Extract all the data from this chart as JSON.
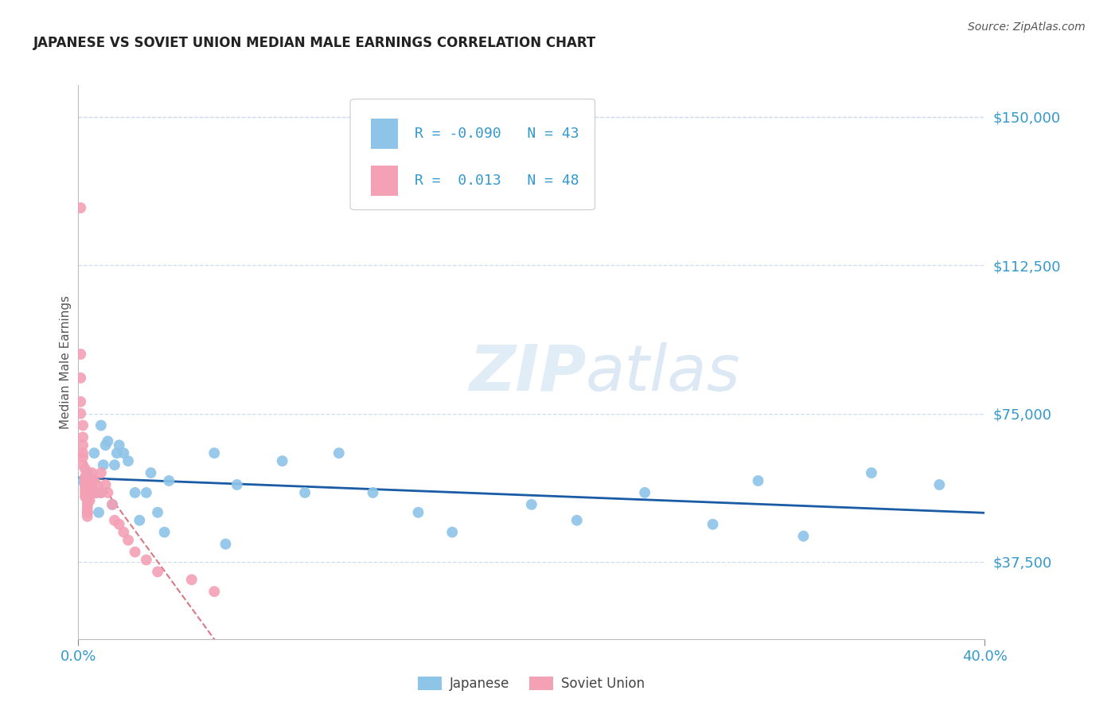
{
  "title": "JAPANESE VS SOVIET UNION MEDIAN MALE EARNINGS CORRELATION CHART",
  "source": "Source: ZipAtlas.com",
  "ylabel": "Median Male Earnings",
  "yticks": [
    37500,
    75000,
    112500,
    150000
  ],
  "ytick_labels": [
    "$37,500",
    "$75,000",
    "$112,500",
    "$150,000"
  ],
  "xmin": 0.0,
  "xmax": 0.4,
  "ymin": 18000,
  "ymax": 158000,
  "watermark": "ZIPatlas",
  "legend_blue_r": "-0.090",
  "legend_blue_n": "43",
  "legend_pink_r": " 0.013",
  "legend_pink_n": "48",
  "blue_color": "#8EC4E8",
  "pink_color": "#F4A0B5",
  "blue_line_color": "#1A5BA6",
  "pink_line_color": "#D46070",
  "axis_color": "#3399CC",
  "grid_color": "#CCDDEE",
  "japanese_x": [
    0.002,
    0.003,
    0.004,
    0.005,
    0.006,
    0.007,
    0.008,
    0.009,
    0.01,
    0.01,
    0.011,
    0.012,
    0.013,
    0.015,
    0.016,
    0.017,
    0.018,
    0.02,
    0.022,
    0.025,
    0.027,
    0.03,
    0.032,
    0.035,
    0.038,
    0.04,
    0.06,
    0.065,
    0.07,
    0.09,
    0.1,
    0.115,
    0.13,
    0.15,
    0.165,
    0.2,
    0.22,
    0.25,
    0.28,
    0.3,
    0.32,
    0.35,
    0.38
  ],
  "japanese_y": [
    58000,
    57000,
    60000,
    55000,
    58000,
    65000,
    55000,
    50000,
    72000,
    55000,
    62000,
    67000,
    68000,
    52000,
    62000,
    65000,
    67000,
    65000,
    63000,
    55000,
    48000,
    55000,
    60000,
    50000,
    45000,
    58000,
    65000,
    42000,
    57000,
    63000,
    55000,
    65000,
    55000,
    50000,
    45000,
    52000,
    48000,
    55000,
    47000,
    58000,
    44000,
    60000,
    57000
  ],
  "soviet_x": [
    0.001,
    0.001,
    0.001,
    0.001,
    0.001,
    0.002,
    0.002,
    0.002,
    0.002,
    0.002,
    0.002,
    0.003,
    0.003,
    0.003,
    0.003,
    0.003,
    0.003,
    0.003,
    0.004,
    0.004,
    0.004,
    0.004,
    0.004,
    0.004,
    0.005,
    0.005,
    0.005,
    0.005,
    0.006,
    0.006,
    0.007,
    0.007,
    0.008,
    0.008,
    0.01,
    0.01,
    0.012,
    0.013,
    0.015,
    0.016,
    0.018,
    0.02,
    0.022,
    0.025,
    0.03,
    0.035,
    0.05,
    0.06
  ],
  "soviet_y": [
    127000,
    90000,
    84000,
    78000,
    75000,
    72000,
    69000,
    67000,
    65000,
    64000,
    62000,
    61000,
    59000,
    58000,
    57000,
    56000,
    55000,
    54000,
    53000,
    52000,
    51000,
    50000,
    50000,
    49000,
    57000,
    56000,
    55000,
    53000,
    60000,
    57000,
    58000,
    55000,
    57000,
    55000,
    60000,
    55000,
    57000,
    55000,
    52000,
    48000,
    47000,
    45000,
    43000,
    40000,
    38000,
    35000,
    33000,
    30000
  ]
}
